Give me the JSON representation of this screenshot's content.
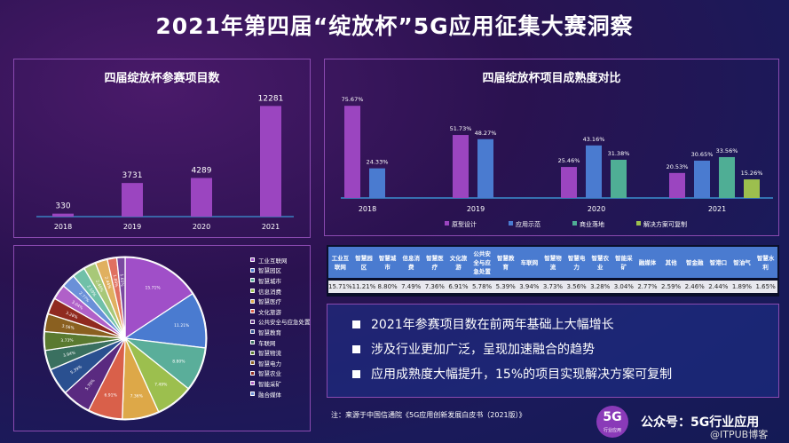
{
  "title": "2021年第四届“绽放杯”5G应用征集大赛洞察",
  "chart_data": [
    {
      "type": "bar",
      "title": "四届绽放杯参赛项目数",
      "categories": [
        "2018",
        "2019",
        "2020",
        "2021"
      ],
      "values": [
        330,
        3731,
        4289,
        12281
      ],
      "color": "#9b45c0",
      "ylim": [
        0,
        13500
      ]
    },
    {
      "type": "bar",
      "title": "四届绽放杯项目成熟度对比",
      "categories": [
        "2018",
        "2019",
        "2020",
        "2021"
      ],
      "ylim": [
        0,
        85
      ],
      "series": [
        {
          "name": "原型设计",
          "color": "#9b45c0",
          "values": [
            75.67,
            51.73,
            25.46,
            20.53
          ],
          "labels": [
            "75.67%",
            "51.73%",
            "25.46%",
            "20.53%"
          ]
        },
        {
          "name": "应用示范",
          "color": "#4a7bd0",
          "values": [
            24.33,
            48.27,
            43.16,
            30.65
          ],
          "labels": [
            "24.33%",
            "48.27%",
            "43.16%",
            "30.65%"
          ]
        },
        {
          "name": "商业落地",
          "color": "#4fae95",
          "values": [
            null,
            null,
            31.38,
            33.56
          ],
          "labels": [
            "",
            "",
            "31.38%",
            "33.56%"
          ]
        },
        {
          "name": "解决方案可复制",
          "color": "#9cbf4e",
          "values": [
            null,
            null,
            null,
            15.26
          ],
          "labels": [
            "",
            "",
            "",
            "15.26%"
          ]
        }
      ],
      "legend": "bottom"
    },
    {
      "type": "pie",
      "categories": [
        "工业互联网",
        "智慧园区",
        "智慧城市",
        "信息消费",
        "智慧医疗",
        "文化旅游",
        "公共安全与应急处置",
        "智慧教育",
        "车联网",
        "智慧物流",
        "智慧电力",
        "智慧农业",
        "智能采矿",
        "融合媒体",
        "其他",
        "智金融",
        "智港口",
        "智油气",
        "智慧水利"
      ],
      "values": [
        15.71,
        11.21,
        8.8,
        7.49,
        7.36,
        6.91,
        5.78,
        5.39,
        3.94,
        3.73,
        3.56,
        3.28,
        3.04,
        2.77,
        2.59,
        2.46,
        2.44,
        1.89,
        1.65
      ],
      "labels": [
        "15.71%",
        "11.21%",
        "8.80%",
        "7.49%",
        "7.36%",
        "6.91%",
        "5.78%",
        "5.39%",
        "3.94%",
        "3.73%",
        "3.56%",
        "3.28%",
        "3.04%",
        "2.77%",
        "2.59%",
        "2.46%",
        "2.44%",
        "1.89%",
        "1.65%"
      ],
      "colors": [
        "#a04fc8",
        "#4a7bd0",
        "#5aae9a",
        "#9cbf4e",
        "#dda848",
        "#d9604a",
        "#5a2a80",
        "#2a5090",
        "#3a7060",
        "#5a7a30",
        "#8a6020",
        "#902a20",
        "#b060c8",
        "#6a90d8",
        "#70c0a8",
        "#a8c878",
        "#e0b060",
        "#e07060",
        "#7a4aa0"
      ],
      "legend_visible": [
        "工业互联网",
        "智慧园区",
        "智慧城市",
        "信息消费",
        "智慧医疗",
        "文化旅游",
        "公共安全与应急处置",
        "智慧教育",
        "车联网",
        "智慧物流",
        "智慧电力",
        "智慧农业",
        "智能采矿",
        "融合媒体"
      ]
    }
  ],
  "table": {
    "headers": [
      "工业互联网",
      "智慧园区",
      "智慧城市",
      "信息消费",
      "智慧医疗",
      "文化旅游",
      "公共安全与应急处置",
      "智慧教育",
      "车联网",
      "智慧物流",
      "智慧电力",
      "智慧农业",
      "智能采矿",
      "融媒体",
      "其他",
      "智金融",
      "智港口",
      "智油气",
      "智慧水利"
    ],
    "values": [
      "15.71%",
      "11.21%",
      "8.80%",
      "7.49%",
      "7.36%",
      "6.91%",
      "5.78%",
      "5.39%",
      "3.94%",
      "3.73%",
      "3.56%",
      "3.28%",
      "3.04%",
      "2.77%",
      "2.59%",
      "2.46%",
      "2.44%",
      "1.89%",
      "1.65%"
    ]
  },
  "bullets": [
    "2021年参赛项目数在前两年基础上大幅增长",
    "涉及行业更加广泛，呈现加速融合的趋势",
    "应用成熟度大幅提升，15%的项目实现解决方案可复制"
  ],
  "footer": {
    "note": "注：来源于中国信通院《5G应用创新发展白皮书（2021版）》",
    "logo": "5G",
    "logo_sub": "行业应用",
    "account": "公众号：5G行业应用",
    "watermark": "@ITPUB博客"
  }
}
